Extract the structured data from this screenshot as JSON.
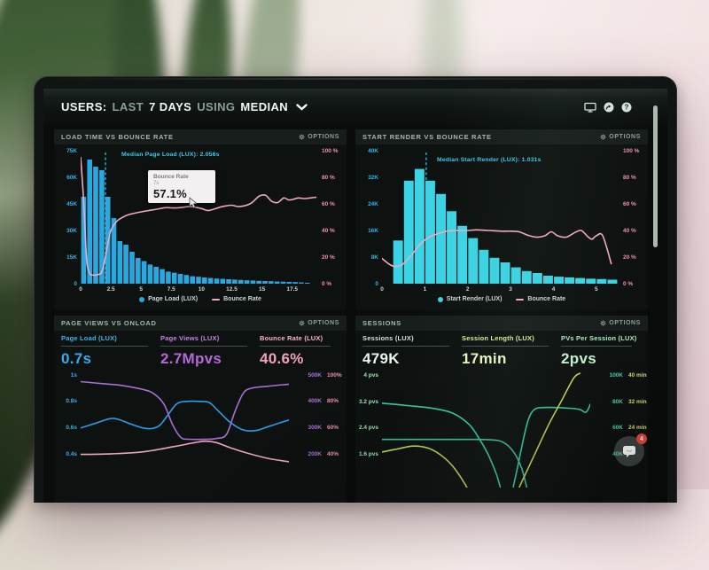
{
  "header": {
    "part1": "USERS:",
    "part2": "LAST",
    "part3": "7 DAYS",
    "part4": "USING",
    "part5": "MEDIAN"
  },
  "labels": {
    "options": "OPTIONS"
  },
  "panels": {
    "load_time": {
      "title": "LOAD TIME VS BOUNCE RATE",
      "legend": [
        "Page Load (LUX)",
        "Bounce Rate"
      ],
      "tooltip": {
        "title": "Bounce Rate",
        "sub": "7s",
        "value": "57.1%"
      }
    },
    "start_render": {
      "title": "START RENDER VS BOUNCE RATE",
      "legend": [
        "Start Render (LUX)",
        "Bounce Rate"
      ]
    },
    "page_views": {
      "title": "PAGE VIEWS VS ONLOAD",
      "metrics": [
        {
          "label": "Page Load (LUX)",
          "value": "0.7s"
        },
        {
          "label": "Page Views (LUX)",
          "value": "2.7Mpvs"
        },
        {
          "label": "Bounce Rate (LUX)",
          "value": "40.6%"
        }
      ]
    },
    "sessions": {
      "title": "SESSIONS",
      "metrics": [
        {
          "label": "Sessions (LUX)",
          "value": "479K"
        },
        {
          "label": "Session Length (LUX)",
          "value": "17min"
        },
        {
          "label": "PVs Per Session (LUX)",
          "value": "2pvs"
        }
      ]
    }
  },
  "chat": {
    "badge": "4"
  },
  "chart_data": [
    {
      "type": "bar+line",
      "title": "LOAD TIME VS BOUNCE RATE",
      "x_range": [
        0,
        19.5
      ],
      "bin_width": 0.5,
      "bar_color": "#2ba7e0",
      "bars": [
        49,
        70,
        66,
        64,
        49,
        37,
        24,
        22,
        18,
        14.5,
        12.7,
        10.8,
        9.5,
        8.2,
        6.8,
        6.2,
        5.5,
        4.9,
        4.2,
        3.9,
        3.5,
        3.2,
        2.9,
        2.7,
        2.5,
        2.3,
        2.1,
        1.9,
        1.8,
        1.6,
        1.5,
        1.4,
        1.2,
        1.1,
        1.0,
        0.9,
        0.7,
        0.5
      ],
      "y_left": {
        "max": 75,
        "color": "#36b3e8",
        "ticks": [
          {
            "v": 75,
            "t": "75K"
          },
          {
            "v": 60,
            "t": "60K"
          },
          {
            "v": 45,
            "t": "45K"
          },
          {
            "v": 30,
            "t": "30K"
          },
          {
            "v": 15,
            "t": "15K"
          },
          {
            "v": 0,
            "t": "0"
          }
        ]
      },
      "y_right": {
        "max": 100,
        "color": "#f08fb4",
        "ticks": [
          {
            "v": 100,
            "t": "100 %"
          },
          {
            "v": 80,
            "t": "80 %"
          },
          {
            "v": 60,
            "t": "60 %"
          },
          {
            "v": 40,
            "t": "40 %"
          },
          {
            "v": 20,
            "t": "20 %"
          },
          {
            "v": 0,
            "t": "0 %"
          }
        ]
      },
      "x_ticks": [
        {
          "v": 0,
          "t": "0"
        },
        {
          "v": 2.5,
          "t": "2.5"
        },
        {
          "v": 5,
          "t": "5"
        },
        {
          "v": 7.5,
          "t": "7.5"
        },
        {
          "v": 10,
          "t": "10"
        },
        {
          "v": 12.5,
          "t": "12.5"
        },
        {
          "v": 15,
          "t": "15"
        },
        {
          "v": 17.5,
          "t": "17.5"
        }
      ],
      "line_color": "#f2a9c0",
      "median_color": "#3fc8ea",
      "median_x": 2.056,
      "median_label": "Median Page Load (LUX): 2.056s",
      "line": [
        [
          0,
          95
        ],
        [
          0.25,
          62
        ],
        [
          0.5,
          18
        ],
        [
          0.75,
          8
        ],
        [
          1,
          6.5
        ],
        [
          1.5,
          7
        ],
        [
          1.75,
          9
        ],
        [
          2,
          18
        ],
        [
          2.25,
          30
        ],
        [
          2.5,
          40
        ],
        [
          3,
          47
        ],
        [
          3.5,
          50
        ],
        [
          4,
          52
        ],
        [
          5,
          54
        ],
        [
          6,
          55.5
        ],
        [
          7,
          57.1
        ],
        [
          7.5,
          57
        ],
        [
          8,
          57
        ],
        [
          8.5,
          57.5
        ],
        [
          9,
          58
        ],
        [
          9.5,
          57.5
        ],
        [
          10,
          56.5
        ],
        [
          10.5,
          55
        ],
        [
          11,
          56
        ],
        [
          11.5,
          57.5
        ],
        [
          12,
          58.5
        ],
        [
          12.5,
          59
        ],
        [
          13,
          58
        ],
        [
          13.5,
          58.5
        ],
        [
          14,
          60
        ],
        [
          14.3,
          62
        ],
        [
          14.8,
          66
        ],
        [
          15.3,
          66.5
        ],
        [
          15.8,
          62
        ],
        [
          16.3,
          61
        ],
        [
          16.8,
          64.5
        ],
        [
          17.2,
          63
        ],
        [
          17.6,
          63.5
        ],
        [
          18,
          64.5
        ],
        [
          18.5,
          64
        ],
        [
          19,
          64.5
        ],
        [
          19.5,
          65
        ]
      ]
    },
    {
      "type": "bar+line",
      "title": "START RENDER VS BOUNCE RATE",
      "x_range": [
        0,
        5.5
      ],
      "bin_width": 0.25,
      "bar_color": "#3bd4e4",
      "bars": [
        0,
        13,
        31,
        34.5,
        31,
        27,
        21.8,
        17.4,
        13.7,
        10.2,
        7.8,
        6.4,
        4.9,
        3.8,
        3.2,
        2.4,
        2.1,
        1.9,
        1.7,
        1.5,
        1.4,
        1.2
      ],
      "y_left": {
        "max": 40,
        "color": "#36b3e8",
        "ticks": [
          {
            "v": 40,
            "t": "40K"
          },
          {
            "v": 32,
            "t": "32K"
          },
          {
            "v": 24,
            "t": "24K"
          },
          {
            "v": 16,
            "t": "16K"
          },
          {
            "v": 8,
            "t": "8K"
          },
          {
            "v": 0,
            "t": "0"
          }
        ]
      },
      "y_right": {
        "max": 100,
        "color": "#f08fb4",
        "ticks": [
          {
            "v": 100,
            "t": "100 %"
          },
          {
            "v": 80,
            "t": "80 %"
          },
          {
            "v": 60,
            "t": "60 %"
          },
          {
            "v": 40,
            "t": "40 %"
          },
          {
            "v": 20,
            "t": "20 %"
          },
          {
            "v": 0,
            "t": "0 %"
          }
        ]
      },
      "x_ticks": [
        {
          "v": 0,
          "t": "0"
        },
        {
          "v": 1,
          "t": "1"
        },
        {
          "v": 2,
          "t": "2"
        },
        {
          "v": 3,
          "t": "3"
        },
        {
          "v": 4,
          "t": "4"
        },
        {
          "v": 5,
          "t": "5"
        }
      ],
      "line_color": "#f2a9c0",
      "median_color": "#3fc8ea",
      "median_x": 1.031,
      "median_label": "Median Start Render (LUX): 1.031s",
      "line": [
        [
          0,
          19
        ],
        [
          0.2,
          14
        ],
        [
          0.35,
          13
        ],
        [
          0.5,
          15
        ],
        [
          0.7,
          22
        ],
        [
          0.9,
          30
        ],
        [
          1.1,
          35
        ],
        [
          1.3,
          37.5
        ],
        [
          1.5,
          39.5
        ],
        [
          1.7,
          40
        ],
        [
          2,
          40
        ],
        [
          2.2,
          40.5
        ],
        [
          2.5,
          40
        ],
        [
          2.8,
          39.5
        ],
        [
          3,
          39.5
        ],
        [
          3.2,
          39
        ],
        [
          3.4,
          36.5
        ],
        [
          3.6,
          35
        ],
        [
          3.8,
          36
        ],
        [
          3.95,
          39
        ],
        [
          4.1,
          36
        ],
        [
          4.3,
          35
        ],
        [
          4.5,
          38.5
        ],
        [
          4.65,
          40
        ],
        [
          4.8,
          35.5
        ],
        [
          4.9,
          33.5
        ],
        [
          5,
          36
        ],
        [
          5.15,
          36
        ],
        [
          5.35,
          15
        ]
      ]
    },
    {
      "type": "lines",
      "title": "PAGE VIEWS VS ONLOAD",
      "y_range": [
        0.15,
        1.02
      ],
      "left_color": "#3eb0e8",
      "left_ticks": [
        {
          "v": 1,
          "t": "1s"
        },
        {
          "v": 0.8,
          "t": "0.8s"
        },
        {
          "v": 0.6,
          "t": "0.6s"
        },
        {
          "v": 0.4,
          "t": "0.4s"
        }
      ],
      "right_colors": [
        "#aa74d4",
        "#f08fb4"
      ],
      "right_ticks": [
        {
          "v": 1,
          "a": "500K",
          "b": "100%"
        },
        {
          "v": 0.8,
          "a": "400K",
          "b": "80%"
        },
        {
          "v": 0.6,
          "a": "300K",
          "b": "60%"
        },
        {
          "v": 0.4,
          "a": "200K",
          "b": "40%"
        }
      ],
      "series": [
        {
          "name": "Page Views (LUX)",
          "color": "#a86fd0",
          "points": [
            [
              0,
              0.95
            ],
            [
              10,
              0.935
            ],
            [
              20,
              0.92
            ],
            [
              30,
              0.89
            ],
            [
              35,
              0.86
            ],
            [
              40,
              0.78
            ],
            [
              44,
              0.63
            ],
            [
              48,
              0.53
            ],
            [
              52,
              0.515
            ],
            [
              60,
              0.515
            ],
            [
              65,
              0.52
            ],
            [
              70,
              0.55
            ],
            [
              74,
              0.72
            ],
            [
              78,
              0.86
            ],
            [
              82,
              0.9
            ],
            [
              90,
              0.915
            ],
            [
              100,
              0.93
            ]
          ]
        },
        {
          "name": "Page Load (LUX)",
          "color": "#2b9fe8",
          "points": [
            [
              0,
              0.6
            ],
            [
              8,
              0.64
            ],
            [
              14,
              0.67
            ],
            [
              18,
              0.665
            ],
            [
              24,
              0.63
            ],
            [
              30,
              0.6
            ],
            [
              34,
              0.595
            ],
            [
              38,
              0.62
            ],
            [
              42,
              0.7
            ],
            [
              46,
              0.78
            ],
            [
              50,
              0.8
            ],
            [
              58,
              0.8
            ],
            [
              62,
              0.79
            ],
            [
              66,
              0.73
            ],
            [
              72,
              0.64
            ],
            [
              78,
              0.585
            ],
            [
              84,
              0.58
            ],
            [
              90,
              0.61
            ],
            [
              100,
              0.66
            ]
          ]
        },
        {
          "name": "Bounce Rate (LUX)",
          "color": "#eda4be",
          "points": [
            [
              0,
              0.4
            ],
            [
              15,
              0.405
            ],
            [
              30,
              0.42
            ],
            [
              45,
              0.46
            ],
            [
              55,
              0.49
            ],
            [
              60,
              0.5
            ],
            [
              65,
              0.49
            ],
            [
              72,
              0.45
            ],
            [
              80,
              0.41
            ],
            [
              90,
              0.37
            ],
            [
              100,
              0.345
            ]
          ]
        }
      ]
    },
    {
      "type": "lines",
      "title": "SESSIONS",
      "y_range": [
        0.61,
        4.08
      ],
      "left_color": "#9fe8b5",
      "left_ticks": [
        {
          "v": 4,
          "t": "4 pvs"
        },
        {
          "v": 3.2,
          "t": "3.2 pvs"
        },
        {
          "v": 2.4,
          "t": "2.4 pvs"
        },
        {
          "v": 1.6,
          "t": "1.6 pvs"
        }
      ],
      "right_colors": [
        "#45d6b0",
        "#cfe070"
      ],
      "right_ticks": [
        {
          "v": 4,
          "a": "100K",
          "b": "40 min"
        },
        {
          "v": 3.2,
          "a": "80K",
          "b": "32 min"
        },
        {
          "v": 2.4,
          "a": "60K",
          "b": "24 min"
        },
        {
          "v": 1.6,
          "a": "40K",
          "b": ""
        }
      ],
      "series": [
        {
          "name": "Sessions (LUX)",
          "color": "#35d2a8",
          "points": [
            [
              0,
              3.15
            ],
            [
              12,
              3.08
            ],
            [
              24,
              3.0
            ],
            [
              34,
              2.85
            ],
            [
              42,
              2.5
            ],
            [
              47,
              2.05
            ],
            [
              51,
              1.6
            ],
            [
              55,
              1.0
            ],
            [
              58,
              0.4
            ],
            [
              61,
              0.2
            ],
            [
              64,
              0.9
            ],
            [
              67,
              1.8
            ],
            [
              70,
              2.6
            ],
            [
              73,
              2.95
            ],
            [
              78,
              3.02
            ],
            [
              90,
              3.0
            ],
            [
              95,
              2.96
            ],
            [
              98,
              2.88
            ],
            [
              100,
              3.12
            ]
          ]
        },
        {
          "name": "PVs Per Session (LUX)",
          "color": "#3bc9a4",
          "points": [
            [
              0,
              2.06
            ],
            [
              40,
              2.06
            ],
            [
              52,
              2.05
            ],
            [
              58,
              1.98
            ],
            [
              63,
              1.7
            ],
            [
              67,
              1.2
            ],
            [
              70,
              0.5
            ],
            [
              72,
              0.1
            ]
          ]
        },
        {
          "name": "Session Length (LUX)",
          "color": "#c8dc50",
          "points": [
            [
              0,
              1.68
            ],
            [
              8,
              1.78
            ],
            [
              15,
              1.86
            ],
            [
              22,
              1.8
            ],
            [
              28,
              1.6
            ],
            [
              34,
              1.25
            ],
            [
              40,
              0.7
            ],
            [
              44,
              0.2
            ],
            [
              47,
              -0.2
            ],
            [
              58,
              -0.3
            ],
            [
              62,
              0.1
            ],
            [
              68,
              0.9
            ],
            [
              74,
              1.7
            ],
            [
              80,
              2.5
            ],
            [
              86,
              3.2
            ],
            [
              92,
              3.9
            ],
            [
              95,
              4.05
            ]
          ]
        }
      ]
    }
  ]
}
